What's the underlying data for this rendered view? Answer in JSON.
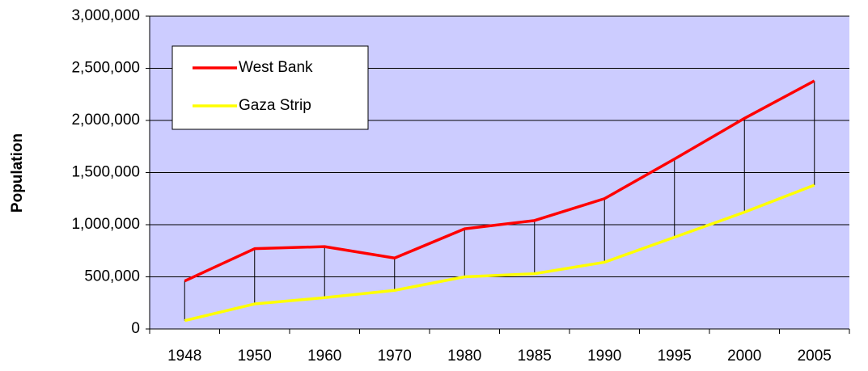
{
  "chart_data": {
    "type": "line",
    "y_label": "Population",
    "categories": [
      "1948",
      "1950",
      "1960",
      "1970",
      "1980",
      "1985",
      "1990",
      "1995",
      "2000",
      "2005"
    ],
    "series": [
      {
        "name": "West Bank",
        "color": "#ff0000",
        "values": [
          460000,
          770000,
          790000,
          680000,
          960000,
          1040000,
          1250000,
          1630000,
          2020000,
          2380000
        ]
      },
      {
        "name": "Gaza Strip",
        "color": "#ffff00",
        "values": [
          80000,
          240000,
          300000,
          370000,
          500000,
          530000,
          640000,
          880000,
          1120000,
          1380000
        ]
      }
    ],
    "ylim": [
      0,
      3000000
    ],
    "yticks": [
      0,
      {
        "value": 500000,
        "label": "500,000"
      },
      {
        "value": 1000000,
        "label": "1,000,000"
      },
      {
        "value": 1500000,
        "label": "1,500,000"
      },
      {
        "value": 2000000,
        "label": "2,000,000"
      },
      {
        "value": 2500000,
        "label": "2,500,000"
      },
      {
        "value": 3000000,
        "label": "3,000,000"
      }
    ],
    "grid": true,
    "drop_lines": true,
    "plot_background": "#ccccff",
    "legend": "upper left"
  }
}
